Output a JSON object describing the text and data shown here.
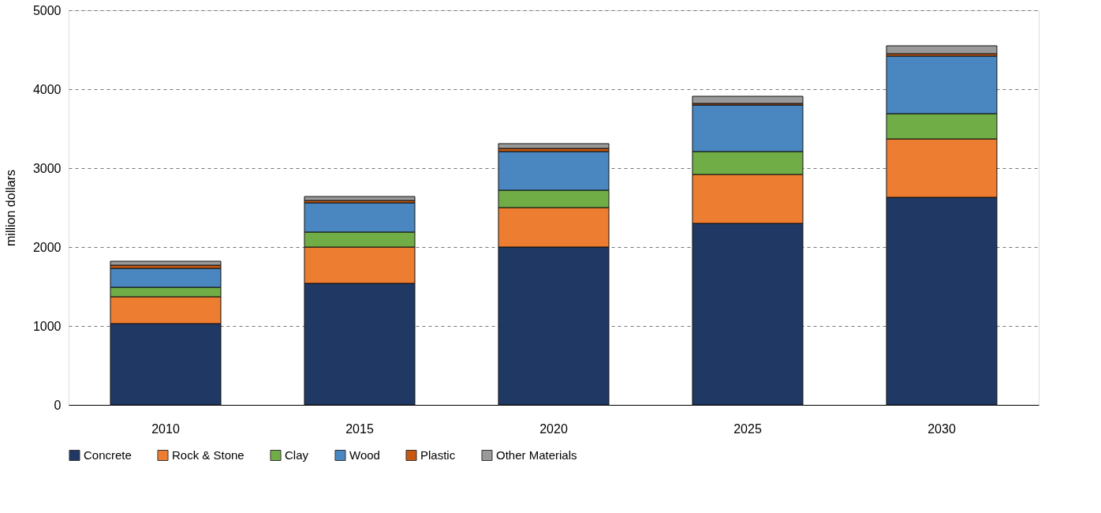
{
  "chart_data": {
    "type": "bar",
    "stacked": true,
    "ylabel": "million dollars",
    "categories": [
      "2010",
      "2015",
      "2020",
      "2025",
      "2030"
    ],
    "series": [
      {
        "name": "Concrete",
        "color": "#1f3864",
        "values": [
          1030,
          1540,
          2000,
          2300,
          2630
        ]
      },
      {
        "name": "Rock & Stone",
        "color": "#ed7d31",
        "values": [
          340,
          460,
          500,
          620,
          740
        ]
      },
      {
        "name": "Clay",
        "color": "#70ad47",
        "values": [
          120,
          190,
          220,
          290,
          320
        ]
      },
      {
        "name": "Wood",
        "color": "#4a86c0",
        "values": [
          240,
          370,
          490,
          590,
          730
        ]
      },
      {
        "name": "Plastic",
        "color": "#c65911",
        "values": [
          40,
          30,
          40,
          20,
          30
        ]
      },
      {
        "name": "Other Materials",
        "color": "#9a9a9a",
        "values": [
          50,
          50,
          60,
          90,
          100
        ]
      }
    ],
    "ylim": [
      0,
      5000
    ],
    "yticks": [
      0,
      1000,
      2000,
      3000,
      4000,
      5000
    ],
    "grid": "y",
    "legend": "bottom"
  }
}
